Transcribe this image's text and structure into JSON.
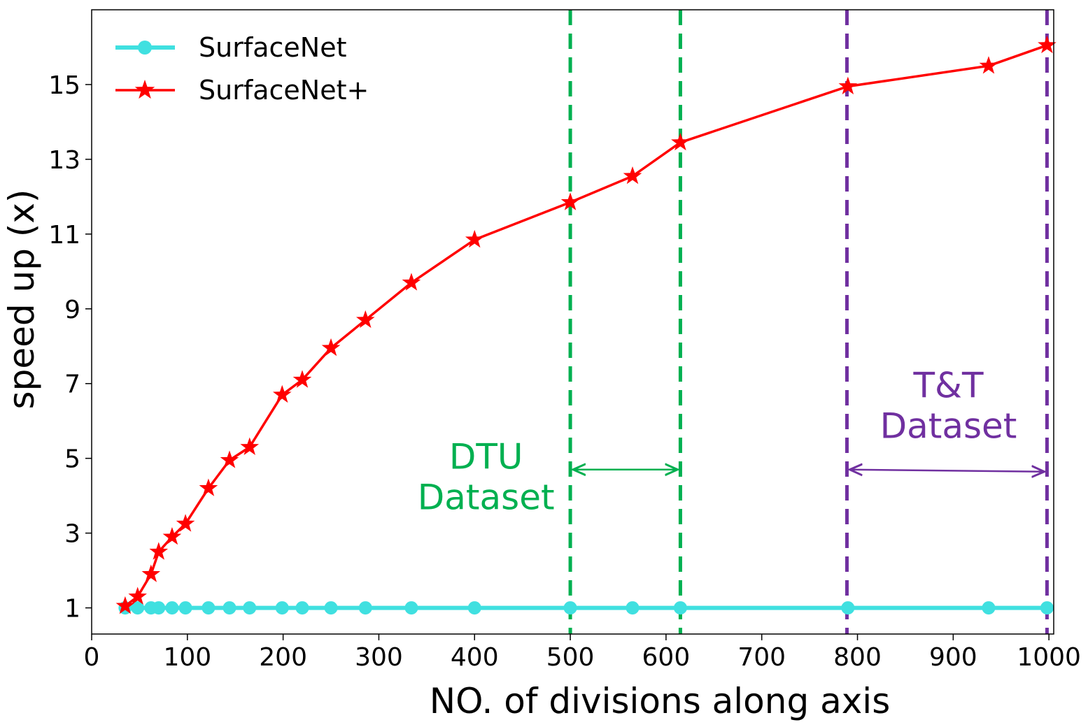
{
  "chart_data": {
    "type": "line",
    "xlabel": "NO. of divisions along axis",
    "ylabel": "speed up (x)",
    "xlim": [
      0,
      1005
    ],
    "ylim": [
      0.3,
      17.0
    ],
    "xticks": [
      0,
      100,
      200,
      300,
      400,
      500,
      600,
      700,
      800,
      900,
      1000
    ],
    "yticks": [
      1,
      3,
      5,
      7,
      9,
      11,
      13,
      15
    ],
    "grid": false,
    "legend_position": "top-left",
    "series": [
      {
        "name": "SurfaceNet",
        "color": "#40e0e0",
        "marker": "circle",
        "x": [
          35,
          48,
          62,
          70,
          84,
          98,
          122,
          144,
          165,
          199,
          220,
          250,
          286,
          334,
          400,
          500,
          565,
          615,
          790,
          937,
          998
        ],
        "y": [
          1,
          1,
          1,
          1,
          1,
          1,
          1,
          1,
          1,
          1,
          1,
          1,
          1,
          1,
          1,
          1,
          1,
          1,
          1,
          1,
          1
        ]
      },
      {
        "name": "SurfaceNet+",
        "color": "#ff0000",
        "marker": "star",
        "x": [
          35,
          48,
          62,
          70,
          84,
          98,
          122,
          144,
          165,
          199,
          220,
          250,
          286,
          334,
          400,
          500,
          565,
          615,
          790,
          937,
          998
        ],
        "y": [
          1.05,
          1.3,
          1.9,
          2.5,
          2.9,
          3.25,
          4.2,
          4.95,
          5.3,
          6.7,
          7.1,
          7.95,
          8.7,
          9.7,
          10.85,
          11.85,
          12.55,
          13.45,
          14.95,
          15.5,
          16.05
        ]
      }
    ],
    "reference_lines": [
      {
        "x": 500,
        "color": "#00b050",
        "style": "dashed"
      },
      {
        "x": 615,
        "color": "#00b050",
        "style": "dashed"
      },
      {
        "x": 789,
        "color": "#7030a0",
        "style": "dashed"
      },
      {
        "x": 998,
        "color": "#7030a0",
        "style": "dashed"
      }
    ],
    "annotations": [
      {
        "lines": [
          "DTU",
          "Dataset"
        ],
        "color": "#00b050",
        "x_center": 412,
        "y_top": 5.4,
        "arrow_from": 500,
        "arrow_to": 615,
        "arrow_y": 4.7
      },
      {
        "lines": [
          "T&T",
          "Dataset"
        ],
        "color": "#7030a0",
        "x_center": 895,
        "y_top": 7.3,
        "arrow_from": 789,
        "arrow_to": 998,
        "arrow_y": 4.7
      }
    ]
  }
}
